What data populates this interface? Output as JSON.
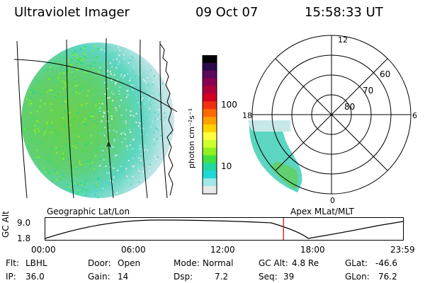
{
  "header": {
    "instrument": "Ultraviolet Imager",
    "date": "09 Oct 07",
    "time": "15:58:33 UT"
  },
  "colorbar": {
    "unit_label": "photon cm⁻²s⁻¹",
    "ticks": [
      "100",
      "10"
    ],
    "colors": [
      "#000000",
      "#2a0a4a",
      "#5a0a5a",
      "#8a0050",
      "#b0003a",
      "#d40020",
      "#f03010",
      "#ff6a00",
      "#ffa000",
      "#ffd200",
      "#ffff40",
      "#d0ff30",
      "#90f020",
      "#40e040",
      "#20d8a0",
      "#20d8d8",
      "#a0e8e8",
      "#e8e8e8"
    ]
  },
  "left_panel": {
    "caption": "Geographic Lat/Lon",
    "marker": "A"
  },
  "right_panel": {
    "caption": "Apex MLat/MLT",
    "mlt_labels": [
      "12",
      "18",
      "6",
      "0"
    ],
    "lat_labels": [
      "60",
      "70",
      "80"
    ]
  },
  "altitude_plot": {
    "ylabel": "GC Alt",
    "y_ticks": [
      "9.0",
      "1.8"
    ],
    "x_ticks": [
      "00:00",
      "06:00",
      "12:00",
      "18:00",
      "23:59"
    ],
    "current_hour": 15.98
  },
  "info": {
    "filter_label": "Flt:",
    "filter": "LBHL",
    "door_label": "Door:",
    "door": "Open",
    "mode_label": "Mode:",
    "mode": "Normal",
    "gcalt_label": "GC Alt:",
    "gcalt": "4.8 Re",
    "glat_label": "GLat:",
    "glat": "-46.6",
    "ip_label": "IP:",
    "ip": "36.0",
    "gain_label": "Gain:",
    "gain": "14",
    "dsp_label": "Dsp:",
    "dsp": "7.2",
    "seq_label": "Seq:",
    "seq": "39",
    "glon_label": "GLon:",
    "glon": "76.2"
  }
}
